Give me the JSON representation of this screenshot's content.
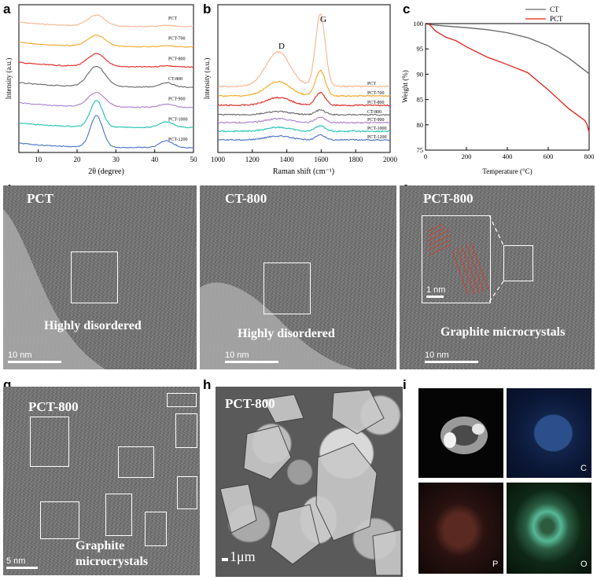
{
  "panels": {
    "a": {
      "label": "a"
    },
    "b": {
      "label": "b"
    },
    "c": {
      "label": "c"
    },
    "d": {
      "label": "d",
      "title": "PCT",
      "note": "Highly disordered",
      "scale": "10 nm"
    },
    "e": {
      "label": "e",
      "title": "CT-800",
      "note": "Highly disordered",
      "scale": "10 nm"
    },
    "f": {
      "label": "f",
      "title": "PCT-800",
      "note": "Graphite microcrystals",
      "scale": "10 nm",
      "inset_scale": "1 nm"
    },
    "g": {
      "label": "g",
      "title": "PCT-800",
      "note_line1": "Graphite",
      "note_line2": "microcrystals",
      "scale": "5 nm"
    },
    "h": {
      "label": "h",
      "title": "PCT-800",
      "scale": "1μm"
    },
    "i": {
      "label": "i",
      "maps": [
        "C",
        "P",
        "O"
      ]
    }
  },
  "chart_data": [
    {
      "type": "line",
      "panel": "a",
      "xlabel": "2θ (degree)",
      "ylabel": "Intensity (a.u.)",
      "xlim": [
        5,
        50
      ],
      "xticks": [
        10,
        20,
        30,
        40,
        50
      ],
      "series": [
        {
          "name": "PCT",
          "color": "#f6b48e"
        },
        {
          "name": "PCT-700",
          "color": "#f5a623"
        },
        {
          "name": "PCT-800",
          "color": "#e0241c"
        },
        {
          "name": "CT-800",
          "color": "#666666"
        },
        {
          "name": "PCT-900",
          "color": "#a97fcf"
        },
        {
          "name": "PCT-1000",
          "color": "#1fc1b3"
        },
        {
          "name": "PCT-1200",
          "color": "#4a72c8"
        }
      ],
      "peaks": [
        25,
        43
      ]
    },
    {
      "type": "line",
      "panel": "b",
      "xlabel": "Raman shift (cm⁻¹)",
      "ylabel": "Intensity (a.u.)",
      "xlim": [
        1000,
        2000
      ],
      "xticks": [
        1000,
        1200,
        1400,
        1600,
        1800,
        2000
      ],
      "annotations": [
        {
          "text": "D",
          "x": 1350
        },
        {
          "text": "G",
          "x": 1590
        }
      ],
      "series": [
        {
          "name": "PCT",
          "color": "#f6b48e"
        },
        {
          "name": "PCT-700",
          "color": "#f5a623"
        },
        {
          "name": "PCT-800",
          "color": "#e0241c"
        },
        {
          "name": "CT-800",
          "color": "#666666"
        },
        {
          "name": "PCT-900",
          "color": "#a97fcf"
        },
        {
          "name": "PCT-1000",
          "color": "#1fc1b3"
        },
        {
          "name": "PCT-1200",
          "color": "#4a72c8"
        }
      ]
    },
    {
      "type": "line",
      "panel": "c",
      "xlabel": "Temperature (°C)",
      "ylabel": "Weight (%)",
      "xlim": [
        0,
        800
      ],
      "ylim": [
        75,
        100
      ],
      "xticks": [
        0,
        200,
        400,
        600,
        800
      ],
      "yticks": [
        75,
        80,
        85,
        90,
        95,
        100
      ],
      "legend": "top-right",
      "series": [
        {
          "name": "CT",
          "color": "#666666",
          "x": [
            0,
            25,
            100,
            200,
            300,
            400,
            500,
            600,
            700,
            800
          ],
          "y": [
            100,
            99.8,
            99.5,
            99.2,
            98.8,
            98.2,
            97.2,
            95.6,
            93.2,
            90.1
          ]
        },
        {
          "name": "PCT",
          "color": "#e0241c",
          "x": [
            0,
            20,
            50,
            100,
            150,
            200,
            300,
            400,
            500,
            600,
            700,
            780,
            790,
            800
          ],
          "y": [
            100,
            99.8,
            98.5,
            97.3,
            96.6,
            95.4,
            93.4,
            91.9,
            90.3,
            86.9,
            83.2,
            80.8,
            80,
            78.5
          ]
        }
      ]
    }
  ]
}
